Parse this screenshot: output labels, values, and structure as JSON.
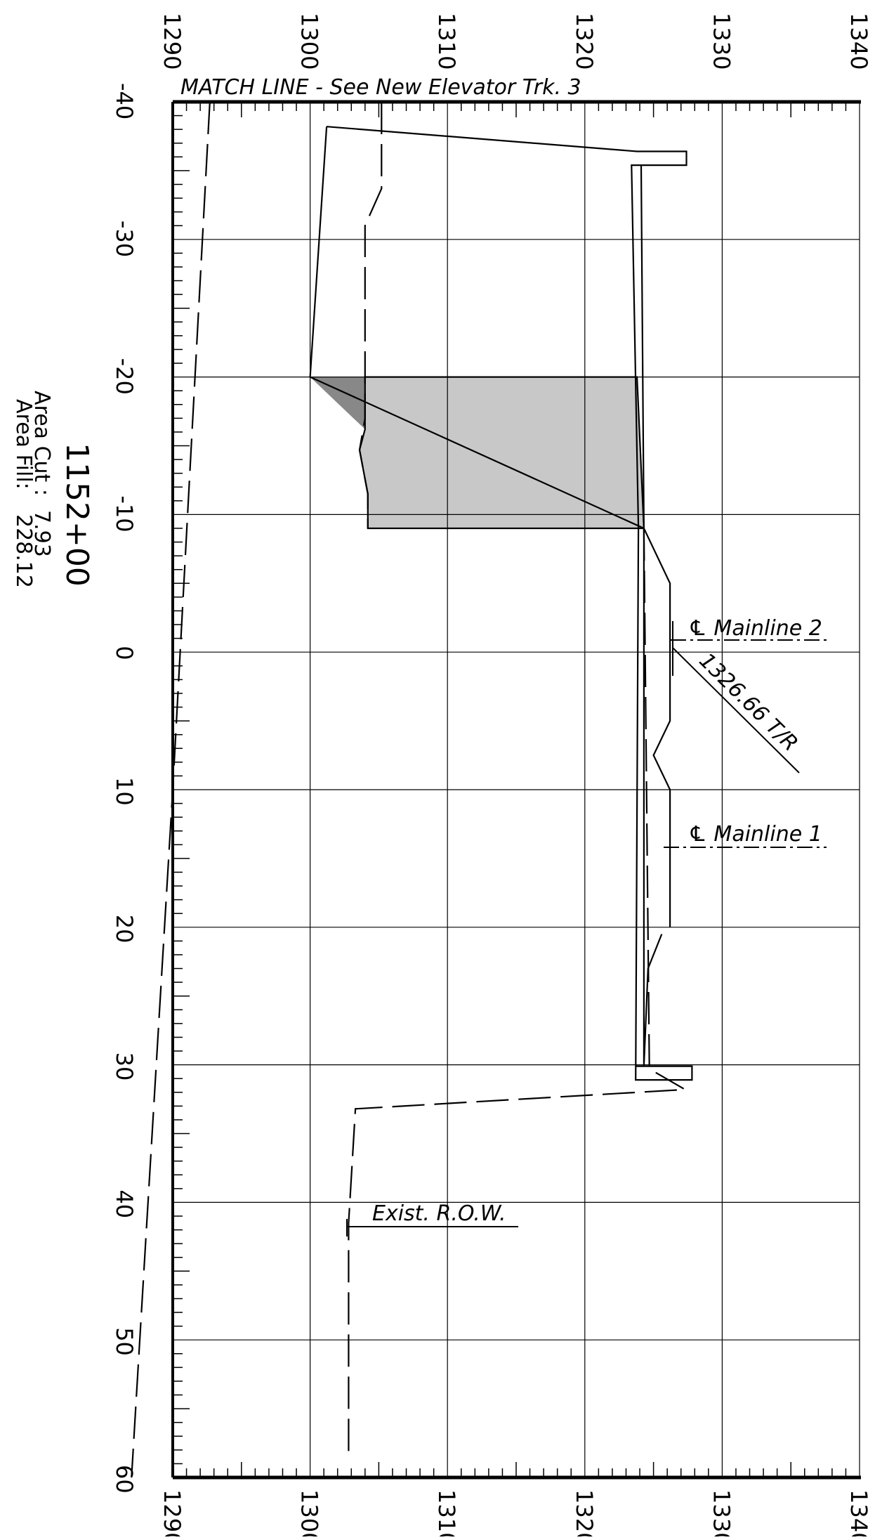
{
  "section": {
    "station": "1152+00",
    "area_cut_label": "Area Cut :",
    "area_cut_value": "7.93",
    "area_fill_label": "Area Fill:",
    "area_fill_value": "228.12"
  },
  "annotations": {
    "match_line": "MATCH LINE - See New Elevator Trk. 3",
    "mainline_2": "℄ Mainline 2",
    "mainline_1": "℄ Mainline 1",
    "top_of_rail": "1326.66 T/R",
    "exist_row": "Exist. R.O.W."
  },
  "chart_data": {
    "type": "cross-section",
    "elevation_ticks": [
      "1290",
      "1300",
      "1310",
      "1320",
      "1330",
      "1340"
    ],
    "offset_ticks": [
      "-40",
      "-30",
      "-20",
      "-10",
      "0",
      "10",
      "20",
      "30",
      "40",
      "50",
      "60"
    ],
    "elevation_range": [
      1290,
      1340
    ],
    "offset_range": [
      -40,
      60
    ],
    "grid": true,
    "colors": {
      "cut": "#888888",
      "fill": "#c8c8c8",
      "line": "#000000"
    },
    "series": [
      {
        "style": "solid",
        "points": [
          [
            -38.2,
            1301.2
          ],
          [
            -20,
            1300
          ],
          [
            -9,
            1324.3
          ],
          [
            -5,
            1326.2
          ],
          [
            5,
            1326.2
          ],
          [
            7.5,
            1325
          ],
          [
            10,
            1326.2
          ],
          [
            20,
            1326.2
          ]
        ]
      },
      {
        "style": "solid",
        "points": [
          [
            -38.2,
            1301.2
          ],
          [
            -36.4,
            1323.8
          ],
          [
            -36.4,
            1327.4
          ],
          [
            -35.4,
            1327.4
          ],
          [
            -35.4,
            1323.4
          ],
          [
            -9,
            1323.9
          ],
          [
            31.1,
            1323.7
          ],
          [
            31.1,
            1327.8
          ],
          [
            30.1,
            1327.8
          ],
          [
            30.1,
            1323.7
          ]
        ]
      },
      {
        "style": "solid",
        "points": [
          [
            -35.4,
            1324.1
          ],
          [
            -9,
            1324.3
          ],
          [
            30.1,
            1324.3
          ],
          [
            23,
            1324.6
          ],
          [
            20.5,
            1325.6
          ]
        ]
      },
      {
        "style": "dashed",
        "points": [
          [
            -40,
            1305.2
          ],
          [
            -33.7,
            1305.2
          ],
          [
            -31,
            1304
          ],
          [
            -17,
            1304
          ],
          [
            -14.7,
            1303.6
          ],
          [
            -11.5,
            1304.2
          ],
          [
            -9,
            1304.2
          ]
        ]
      },
      {
        "style": "dashed",
        "points": [
          [
            -9,
            1324.3
          ],
          [
            30.3,
            1324.7
          ],
          [
            31.8,
            1327.3
          ],
          [
            33.2,
            1303.3
          ],
          [
            41.5,
            1302.8
          ],
          [
            58.6,
            1302.8
          ]
        ]
      },
      {
        "style": "dashed",
        "points": [
          [
            -40,
            1292.7
          ],
          [
            10,
            1290
          ],
          [
            60,
            1287
          ]
        ]
      }
    ],
    "cut_region": [
      [
        -20,
        1300
      ],
      [
        -20,
        1304
      ],
      [
        -16.2,
        1304
      ]
    ],
    "fill_region": [
      [
        -20,
        1304
      ],
      [
        -20,
        1323.8
      ],
      [
        -9,
        1324.3
      ],
      [
        -9,
        1304.2
      ],
      [
        -11.5,
        1304.2
      ],
      [
        -14.7,
        1303.6
      ],
      [
        -16.2,
        1304
      ]
    ]
  }
}
